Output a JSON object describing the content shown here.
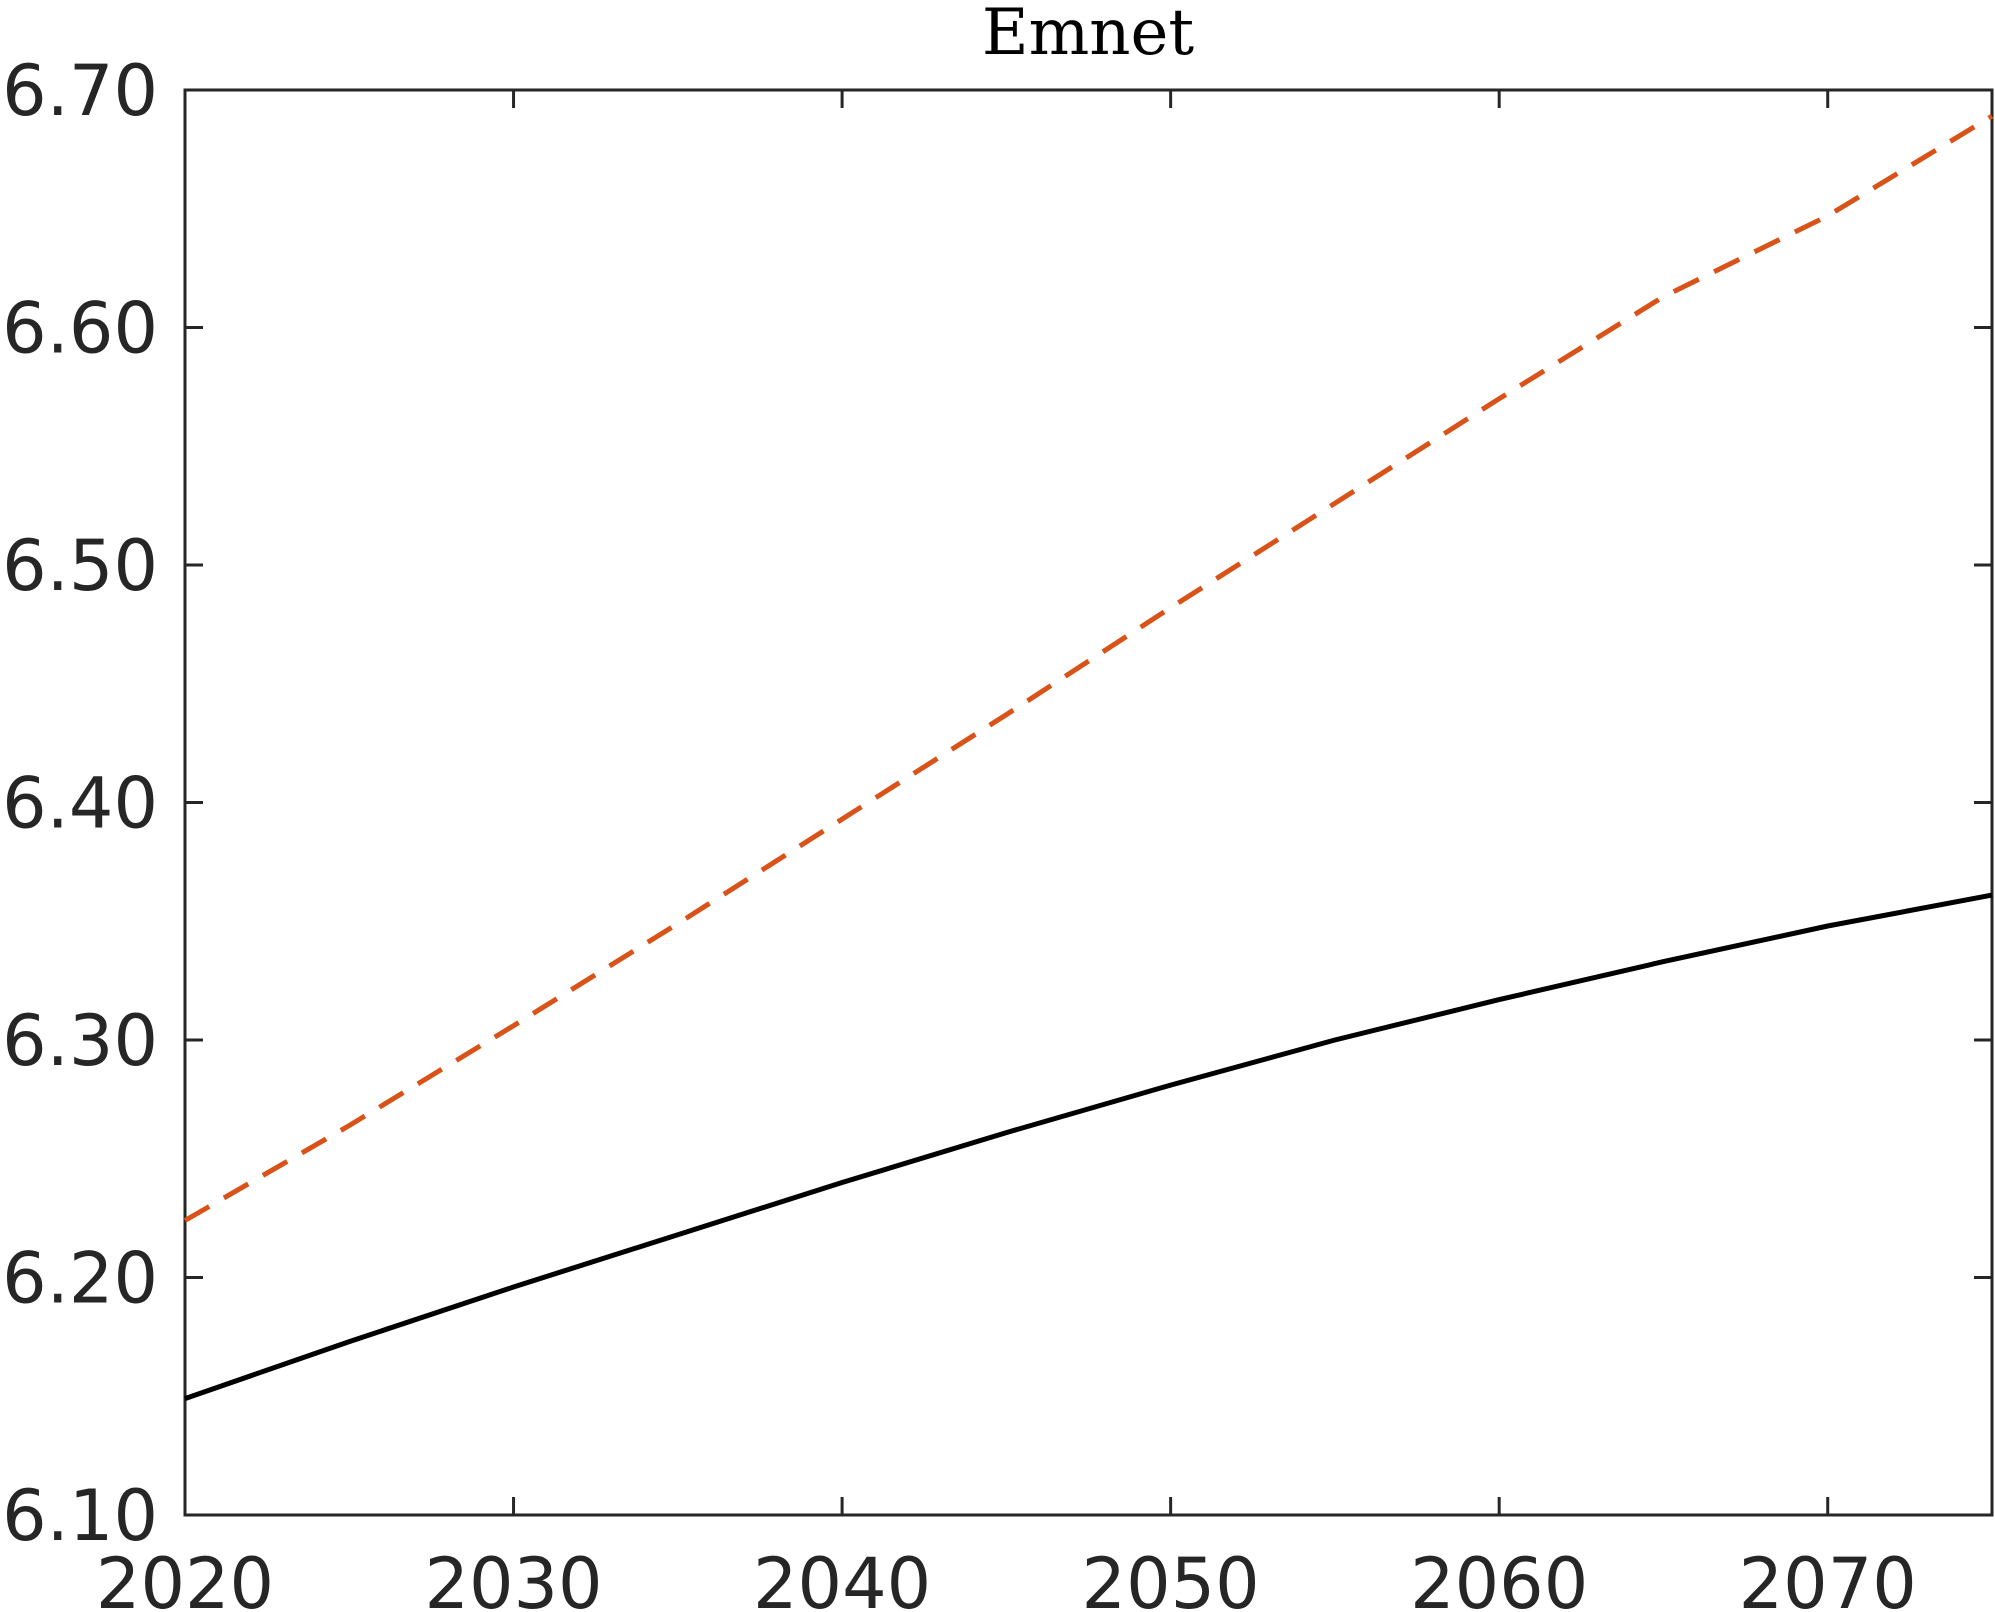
{
  "chart_data": {
    "type": "line",
    "title": "Emnet",
    "xlabel": "",
    "ylabel": "",
    "xlim": [
      2020,
      2075
    ],
    "ylim": [
      6.1,
      6.7
    ],
    "x_ticks": [
      "2020",
      "2030",
      "2040",
      "2050",
      "2060",
      "2070"
    ],
    "y_ticks": [
      "6.10",
      "6.20",
      "6.30",
      "6.40",
      "6.50",
      "6.60",
      "6.70"
    ],
    "grid": false,
    "legend": "none",
    "x": [
      2020,
      2025,
      2030,
      2035,
      2040,
      2045,
      2050,
      2055,
      2060,
      2065,
      2070,
      2075
    ],
    "series": [
      {
        "style": "solid",
        "color": "#000000",
        "values": [
          6.149,
          6.173,
          6.196,
          6.218,
          6.24,
          6.261,
          6.281,
          6.3,
          6.317,
          6.333,
          6.348,
          6.361
        ]
      },
      {
        "style": "dashed",
        "color": "#D95319",
        "values": [
          6.224,
          6.264,
          6.306,
          6.349,
          6.393,
          6.437,
          6.482,
          6.526,
          6.57,
          6.613,
          6.647,
          6.689
        ]
      }
    ]
  }
}
